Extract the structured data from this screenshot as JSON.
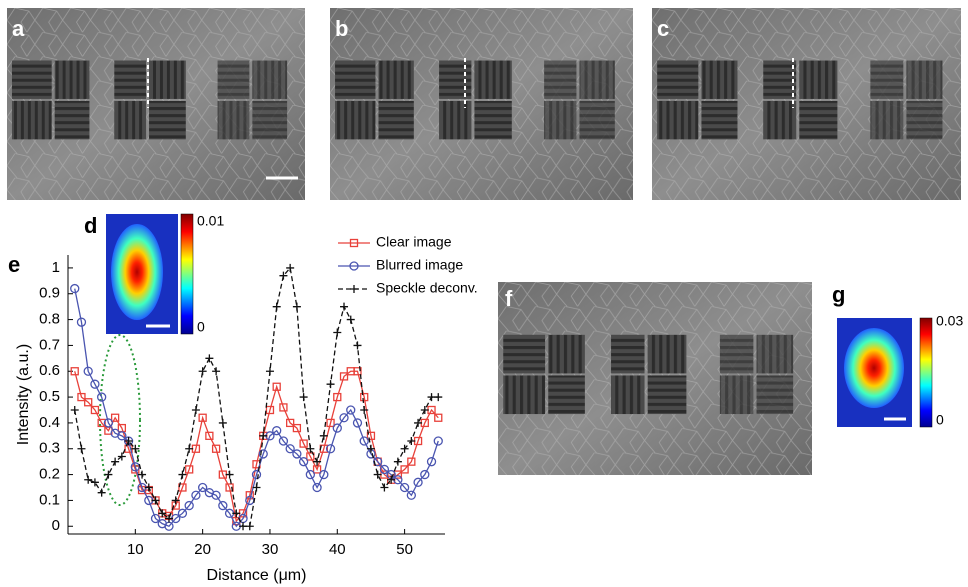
{
  "panels": [
    {
      "label": "a"
    },
    {
      "label": "b"
    },
    {
      "label": "c"
    },
    {
      "label": "d"
    },
    {
      "label": "e"
    },
    {
      "label": "f"
    },
    {
      "label": "g"
    }
  ],
  "colorbars": [
    {
      "max": 0.01,
      "min": 0
    },
    {
      "max": 0.03,
      "min": 0
    }
  ],
  "chart_data": {
    "type": "line",
    "x_label": "Distance (μm)",
    "y_label": "Intensity (a.u.)",
    "x": [
      1,
      2,
      3,
      4,
      5,
      6,
      7,
      8,
      9,
      10,
      11,
      12,
      13,
      14,
      15,
      16,
      17,
      18,
      19,
      20,
      21,
      22,
      23,
      24,
      25,
      26,
      27,
      28,
      29,
      30,
      31,
      32,
      33,
      34,
      35,
      36,
      37,
      38,
      39,
      40,
      41,
      42,
      43,
      44,
      45,
      46,
      47,
      48,
      49,
      50,
      51,
      52,
      53,
      54,
      55
    ],
    "series": [
      {
        "name": "Clear image",
        "color": "#e8413a",
        "marker": "square",
        "dash": false,
        "values": [
          0.6,
          0.5,
          0.48,
          0.45,
          0.4,
          0.37,
          0.42,
          0.38,
          0.3,
          0.22,
          0.14,
          0.14,
          0.1,
          0.05,
          0.04,
          0.08,
          0.15,
          0.22,
          0.3,
          0.42,
          0.35,
          0.3,
          0.2,
          0.15,
          0.02,
          0.05,
          0.12,
          0.24,
          0.35,
          0.45,
          0.54,
          0.46,
          0.4,
          0.38,
          0.32,
          0.27,
          0.22,
          0.3,
          0.4,
          0.5,
          0.58,
          0.6,
          0.6,
          0.5,
          0.35,
          0.25,
          0.2,
          0.18,
          0.2,
          0.22,
          0.25,
          0.33,
          0.4,
          0.45,
          0.42
        ]
      },
      {
        "name": "Blurred image",
        "color": "#4a55b0",
        "marker": "circle",
        "dash": false,
        "values": [
          0.92,
          0.79,
          0.6,
          0.55,
          0.5,
          0.4,
          0.36,
          0.35,
          0.33,
          0.23,
          0.15,
          0.1,
          0.03,
          0.01,
          0,
          0.03,
          0.05,
          0.08,
          0.12,
          0.15,
          0.13,
          0.12,
          0.08,
          0.05,
          0,
          0.03,
          0.1,
          0.2,
          0.28,
          0.35,
          0.37,
          0.33,
          0.3,
          0.28,
          0.25,
          0.2,
          0.15,
          0.2,
          0.3,
          0.38,
          0.42,
          0.45,
          0.4,
          0.33,
          0.28,
          0.25,
          0.22,
          0.2,
          0.18,
          0.15,
          0.12,
          0.17,
          0.2,
          0.25,
          0.33
        ]
      },
      {
        "name": "Speckle deconv.",
        "color": "#111111",
        "marker": "plus",
        "dash": true,
        "values": [
          0.45,
          0.3,
          0.18,
          0.17,
          0.13,
          0.2,
          0.25,
          0.27,
          0.33,
          0.3,
          0.2,
          0.15,
          0.1,
          0.05,
          0.03,
          0.1,
          0.2,
          0.3,
          0.45,
          0.6,
          0.65,
          0.6,
          0.4,
          0.2,
          0.05,
          0,
          0,
          0.15,
          0.35,
          0.6,
          0.85,
          0.97,
          1,
          0.85,
          0.5,
          0.3,
          0.25,
          0.35,
          0.55,
          0.75,
          0.85,
          0.8,
          0.7,
          0.45,
          0.3,
          0.2,
          0.15,
          0.18,
          0.25,
          0.3,
          0.33,
          0.4,
          0.45,
          0.5,
          0.5
        ]
      }
    ],
    "xlim": [
      0,
      56
    ],
    "ylim": [
      -0.03,
      1.05
    ],
    "xticks": [
      10,
      20,
      30,
      40,
      50
    ],
    "yticks": [
      0,
      0.1,
      0.2,
      0.3,
      0.4,
      0.5,
      0.6,
      0.7,
      0.8,
      0.9,
      1
    ]
  }
}
